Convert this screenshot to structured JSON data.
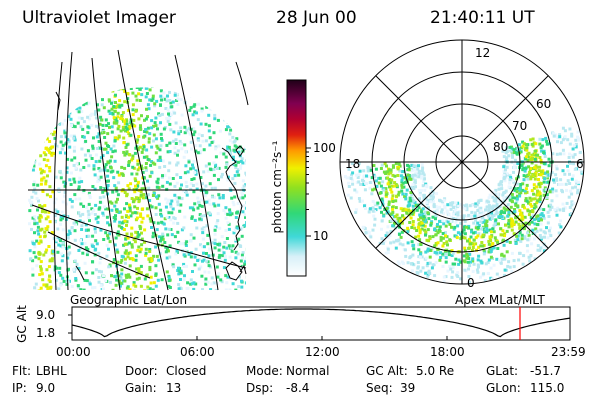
{
  "header": {
    "instrument": "Ultraviolet Imager",
    "date": "28 Jun 00",
    "time": "21:40:11 UT"
  },
  "colorbar": {
    "label": "photon cm⁻²s⁻¹",
    "ticks": [
      "100",
      "10"
    ]
  },
  "left_panel": {
    "caption": "Geographic Lat/Lon"
  },
  "polar_panel": {
    "caption": "Apex MLat/MLT",
    "mlt_labels": [
      "12",
      "18",
      "6",
      "0"
    ],
    "lat_labels": [
      "60",
      "70",
      "80"
    ]
  },
  "orbit_plot": {
    "ylabel": "GC Alt",
    "y_ticks": [
      "9.0",
      "1.8"
    ],
    "x_ticks": [
      "00:00",
      "06:00",
      "12:00",
      "18:00",
      "23:59"
    ],
    "marker_color": "#ff0000"
  },
  "info": {
    "flt_label": "Flt:",
    "flt_value": "LBHL",
    "ip_label": "IP:",
    "ip_value": "9.0",
    "door_label": "Door:",
    "door_value": "Closed",
    "gain_label": "Gain:",
    "gain_value": "13",
    "mode_label": "Mode:",
    "mode_value": "Normal",
    "dsp_label": "Dsp:",
    "dsp_value": "-8.4",
    "gcalt_label": "GC Alt:",
    "gcalt_value": "5.0 Re",
    "seq_label": "Seq:",
    "seq_value": "39",
    "glat_label": "GLat:",
    "glat_value": "-51.7",
    "glon_label": "GLon:",
    "glon_value": "115.0"
  }
}
